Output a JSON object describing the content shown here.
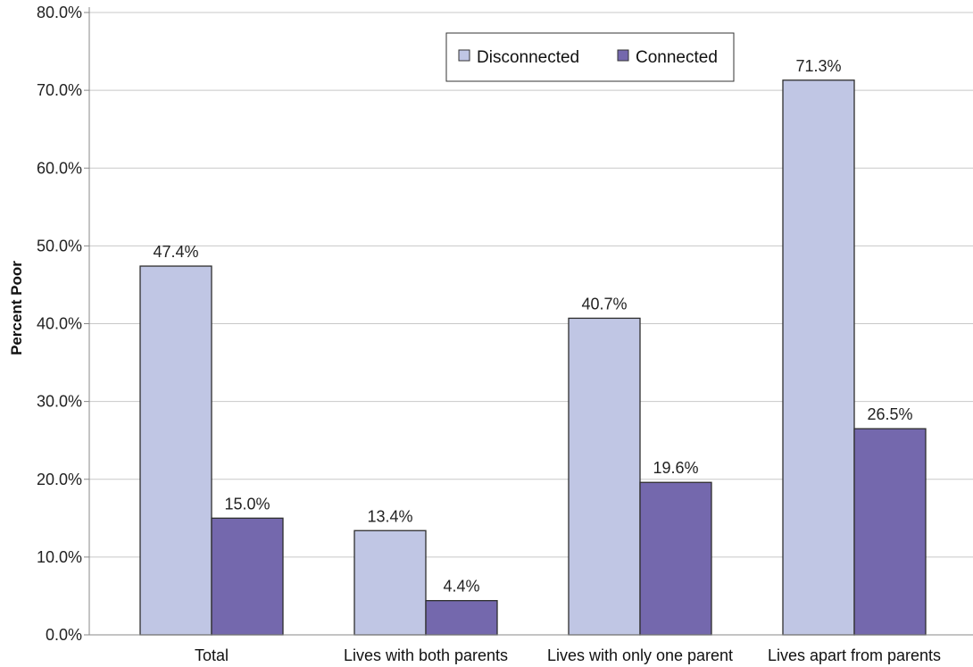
{
  "chart_data": {
    "type": "bar",
    "title": "",
    "xlabel": "",
    "ylabel": "Percent Poor",
    "ylim": [
      0,
      80
    ],
    "yticks": [
      "0.0%",
      "10.0%",
      "20.0%",
      "30.0%",
      "40.0%",
      "50.0%",
      "60.0%",
      "70.0%",
      "80.0%"
    ],
    "categories": [
      "Total",
      "Lives with both parents",
      "Lives with only one parent",
      "Lives apart from parents"
    ],
    "series": [
      {
        "name": "Disconnected",
        "color": "#c0c6e4",
        "values": [
          47.4,
          13.4,
          40.7,
          71.3
        ],
        "labels": [
          "47.4%",
          "13.4%",
          "40.7%",
          "71.3%"
        ]
      },
      {
        "name": "Connected",
        "color": "#7468ad",
        "values": [
          15.0,
          4.4,
          19.6,
          26.5
        ],
        "labels": [
          "15.0%",
          "4.4%",
          "19.6%",
          "26.5%"
        ]
      }
    ],
    "grid": true,
    "legend_position": "top-center"
  }
}
